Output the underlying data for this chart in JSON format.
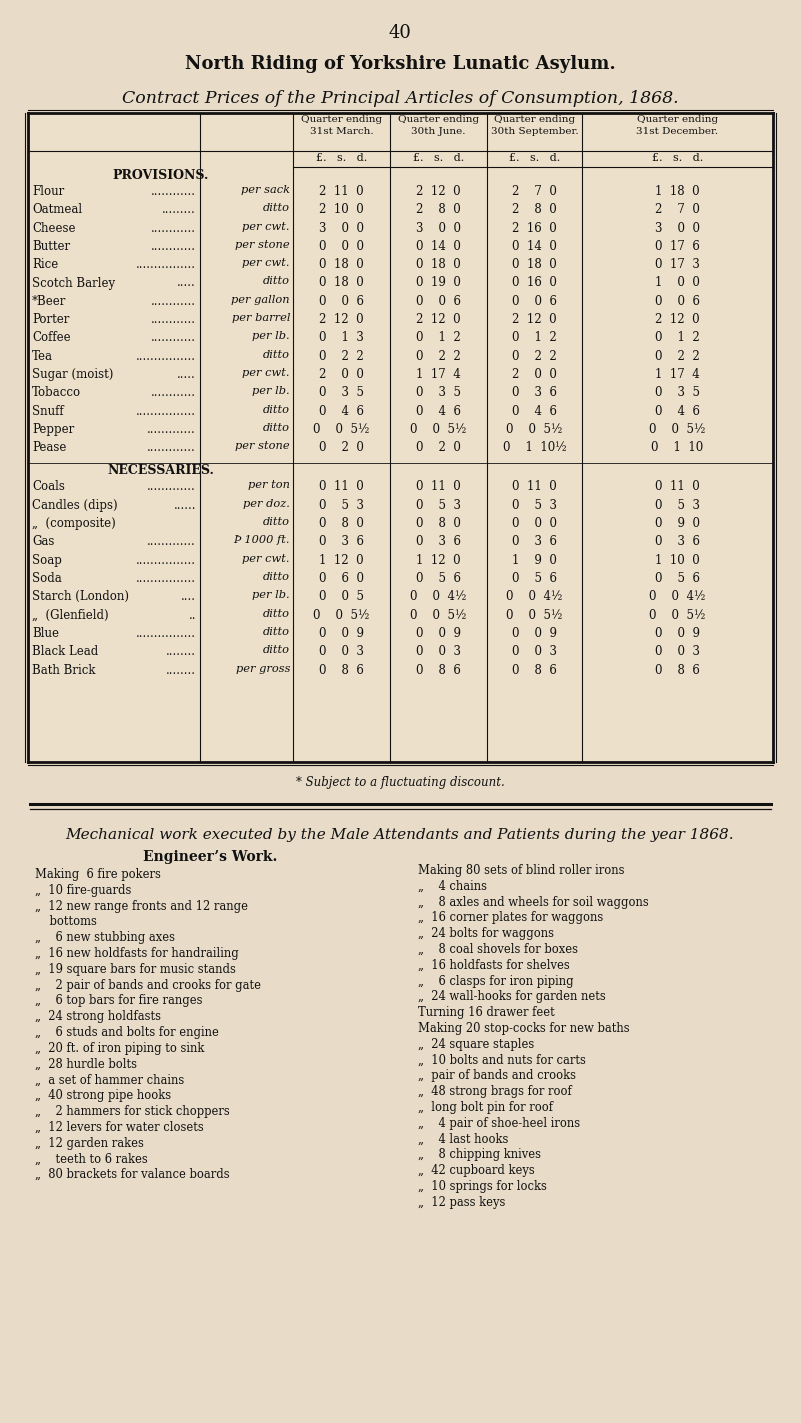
{
  "page_number": "40",
  "title1": "North Riding of Yorkshire Lunatic Asylum.",
  "title2": "Contract Prices of the Principal Articles of Consumption, 1868.",
  "bg_color": "#e8dcc8",
  "table_bg": "#ede0ca",
  "quarter_headers": [
    "Quarter ending\n31st March.",
    "Quarter ending\n30th June.",
    "Quarter ending\n30th September.",
    "Quarter ending\n31st December."
  ],
  "provisions_section": "PROVISIONS.",
  "necessaries_section": "NECESSARIES.",
  "footnote": "* Subject to a fluctuating discount.",
  "provisions_rows": [
    [
      "Flour",
      "............",
      "per sack",
      "2  11  0",
      "2  12  0",
      "2    7  0",
      "1  18  0"
    ],
    [
      "Oatmeal",
      ".........",
      "ditto",
      "2  10  0",
      "2    8  0",
      "2    8  0",
      "2    7  0"
    ],
    [
      "Cheese",
      "............",
      "per cwt.",
      "3    0  0",
      "3    0  0",
      "2  16  0",
      "3    0  0"
    ],
    [
      "Butter",
      "............",
      "per stone",
      "0    0  0",
      "0  14  0",
      "0  14  0",
      "0  17  6"
    ],
    [
      "Rice",
      "................",
      "per cwt.",
      "0  18  0",
      "0  18  0",
      "0  18  0",
      "0  17  3"
    ],
    [
      "Scotch Barley",
      ".....",
      "ditto",
      "0  18  0",
      "0  19  0",
      "0  16  0",
      "1    0  0"
    ],
    [
      "*Beer",
      "............",
      "per gallon",
      "0    0  6",
      "0    0  6",
      "0    0  6",
      "0    0  6"
    ],
    [
      "Porter",
      "............",
      "per barrel",
      "2  12  0",
      "2  12  0",
      "2  12  0",
      "2  12  0"
    ],
    [
      "Coffee",
      "............",
      "per lb.",
      "0    1  3",
      "0    1  2",
      "0    1  2",
      "0    1  2"
    ],
    [
      "Tea",
      "................",
      "ditto",
      "0    2  2",
      "0    2  2",
      "0    2  2",
      "0    2  2"
    ],
    [
      "Sugar (moist)",
      ".....",
      "per cwt.",
      "2    0  0",
      "1  17  4",
      "2    0  0",
      "1  17  4"
    ],
    [
      "Tobacco",
      "............",
      "per lb.",
      "0    3  5",
      "0    3  5",
      "0    3  6",
      "0    3  5"
    ],
    [
      "Snuff",
      "................",
      "ditto",
      "0    4  6",
      "0    4  6",
      "0    4  6",
      "0    4  6"
    ],
    [
      "Pepper",
      ".............",
      "ditto",
      "0    0  5½",
      "0    0  5½",
      "0    0  5½",
      "0    0  5½"
    ],
    [
      "Pease",
      ".............",
      "per stone",
      "0    2  0",
      "0    2  0",
      "0    1  10½",
      "0    1  10"
    ]
  ],
  "necessaries_rows": [
    [
      "Coals",
      ".............",
      "per ton",
      "0  11  0",
      "0  11  0",
      "0  11  0",
      "0  11  0"
    ],
    [
      "Candles (dips)",
      "......",
      "per doz.",
      "0    5  3",
      "0    5  3",
      "0    5  3",
      "0    5  3"
    ],
    [
      "„  (composite)",
      "   ",
      "ditto",
      "0    8  0",
      "0    8  0",
      "0    0  0",
      "0    9  0"
    ],
    [
      "Gas",
      ".............",
      "Þ 1000 ft.",
      "0    3  6",
      "0    3  6",
      "0    3  6",
      "0    3  6"
    ],
    [
      "Soap",
      "................",
      "per cwt.",
      "1  12  0",
      "1  12  0",
      "1    9  0",
      "1  10  0"
    ],
    [
      "Soda",
      "................",
      "ditto",
      "0    6  0",
      "0    5  6",
      "0    5  6",
      "0    5  6"
    ],
    [
      "Starch (London)",
      "....",
      "per lb.",
      "0    0  5",
      "0    0  4½",
      "0    0  4½",
      "0    0  4½"
    ],
    [
      "„  (Glenfield)",
      "..",
      "ditto",
      "0    0  5½",
      "0    0  5½",
      "0    0  5½",
      "0    0  5½"
    ],
    [
      "Blue",
      "................",
      "ditto",
      "0    0  9",
      "0    0  9",
      "0    0  9",
      "0    0  9"
    ],
    [
      "Black Lead",
      "........",
      "ditto",
      "0    0  3",
      "0    0  3",
      "0    0  3",
      "0    0  3"
    ],
    [
      "Bath Brick",
      "........",
      "per gross",
      "0    8  6",
      "0    8  6",
      "0    8  6",
      "0    8  6"
    ]
  ],
  "mechanical_title": "Mechanical work executed by the Male Attendants and Patients during the year 1868.",
  "engineer_title": "Engineer’s Work.",
  "left_items": [
    "Making  6 fire pokers",
    "„  10 fire-guards",
    "„  12 new range fronts and 12 range",
    "    bottoms",
    "„    6 new stubbing axes",
    "„  16 new holdfasts for handrailing",
    "„  19 square bars for music stands",
    "„    2 pair of bands and crooks for gate",
    "„    6 top bars for fire ranges",
    "„  24 strong holdfasts",
    "„    6 studs and bolts for engine",
    "„  20 ft. of iron piping to sink",
    "„  28 hurdle bolts",
    "„  a set of hammer chains",
    "„  40 strong pipe hooks",
    "„    2 hammers for stick choppers",
    "„  12 levers for water closets",
    "„  12 garden rakes",
    "„    teeth to 6 rakes",
    "„  80 brackets for valance boards"
  ],
  "right_items": [
    "Making 80 sets of blind roller irons",
    "„    4 chains",
    "„    8 axles and wheels for soil waggons",
    "„  16 corner plates for waggons",
    "„  24 bolts for waggons",
    "„    8 coal shovels for boxes",
    "„  16 holdfasts for shelves",
    "„    6 clasps for iron piping",
    "„  24 wall-hooks for garden nets",
    "Turning 16 drawer feet",
    "Making 20 stop-cocks for new baths",
    "„  24 square staples",
    "„  10 bolts and nuts for carts",
    "„  pair of bands and crooks",
    "„  48 strong brags for roof",
    "„  long bolt pin for roof",
    "„    4 pair of shoe-heel irons",
    "„    4 last hooks",
    "„    8 chipping knives",
    "„  42 cupboard keys",
    "„  10 springs for locks",
    "„  12 pass keys"
  ]
}
